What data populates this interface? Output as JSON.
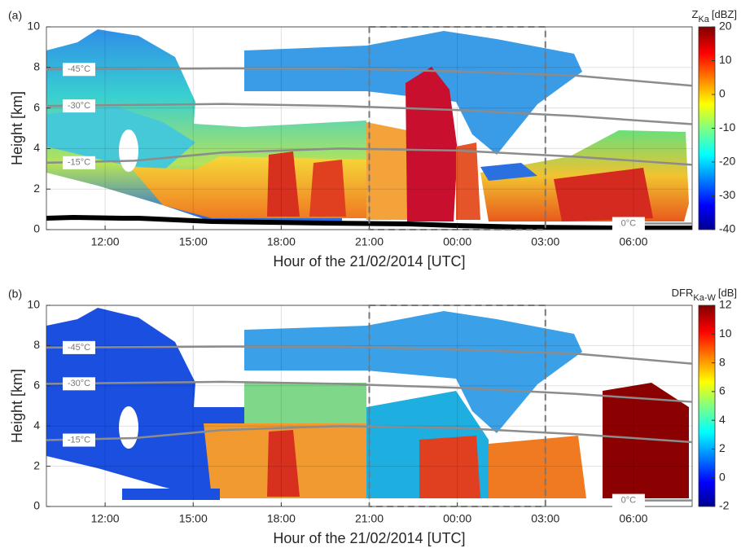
{
  "chart_data": [
    {
      "type": "heatmap",
      "panel_label": "(a)",
      "ylabel": "Height [km]",
      "xlabel": "Hour of the 21/02/2014 [UTC]",
      "xlim": [
        10,
        32
      ],
      "xticks": [
        {
          "value": 12,
          "label": "12:00"
        },
        {
          "value": 15,
          "label": "15:00"
        },
        {
          "value": 18,
          "label": "18:00"
        },
        {
          "value": 21,
          "label": "21:00"
        },
        {
          "value": 24,
          "label": "00:00"
        },
        {
          "value": 27,
          "label": "03:00"
        },
        {
          "value": 30,
          "label": "06:00"
        }
      ],
      "ylim": [
        0,
        10
      ],
      "yticks": [
        0,
        2,
        4,
        6,
        8,
        10
      ],
      "grid": true,
      "highlight_xrange": [
        21,
        27
      ],
      "colorbar": {
        "label_main": "Z",
        "label_sub": "Ka",
        "label_unit": "[dBZ]",
        "colormap": "jet",
        "zlim": [
          -40,
          20
        ],
        "ticks": [
          -40,
          -30,
          -20,
          -10,
          0,
          10,
          20
        ]
      },
      "series": [
        {
          "name": "-45°C",
          "color": "#8c8c8c",
          "x": [
            10,
            16,
            20,
            24,
            28,
            32
          ],
          "values": [
            7.9,
            7.95,
            7.95,
            7.8,
            7.6,
            7.1
          ]
        },
        {
          "name": "-30°C",
          "color": "#8c8c8c",
          "x": [
            10,
            16,
            20,
            24,
            28,
            32
          ],
          "values": [
            6.1,
            6.2,
            6.1,
            5.9,
            5.6,
            5.2
          ]
        },
        {
          "name": "-15°C",
          "color": "#8c8c8c",
          "x": [
            10,
            13,
            16,
            20,
            24,
            28,
            32
          ],
          "values": [
            3.3,
            3.4,
            3.8,
            4.0,
            3.9,
            3.6,
            3.2
          ]
        },
        {
          "name": "0°C",
          "color": "#8c8c8c",
          "x": [
            29.5,
            32
          ],
          "values": [
            0.3,
            0.3
          ]
        }
      ]
    },
    {
      "type": "heatmap",
      "panel_label": "(b)",
      "ylabel": "Height [km]",
      "xlabel": "Hour of the 21/02/2014 [UTC]",
      "xlim": [
        10,
        32
      ],
      "xticks": [
        {
          "value": 12,
          "label": "12:00"
        },
        {
          "value": 15,
          "label": "15:00"
        },
        {
          "value": 18,
          "label": "18:00"
        },
        {
          "value": 21,
          "label": "21:00"
        },
        {
          "value": 24,
          "label": "00:00"
        },
        {
          "value": 27,
          "label": "03:00"
        },
        {
          "value": 30,
          "label": "06:00"
        }
      ],
      "ylim": [
        0,
        10
      ],
      "yticks": [
        0,
        2,
        4,
        6,
        8,
        10
      ],
      "grid": true,
      "highlight_xrange": [
        21,
        27
      ],
      "colorbar": {
        "label_main": "DFR",
        "label_sub": "Ka-W",
        "label_unit": "[dB]",
        "colormap": "jet",
        "zlim": [
          -2,
          12
        ],
        "ticks": [
          -2,
          0,
          2,
          4,
          6,
          8,
          10,
          12
        ]
      },
      "series": [
        {
          "name": "-45°C",
          "color": "#8c8c8c",
          "x": [
            10,
            16,
            20,
            24,
            28,
            32
          ],
          "values": [
            7.9,
            7.95,
            7.95,
            7.8,
            7.6,
            7.1
          ]
        },
        {
          "name": "-30°C",
          "color": "#8c8c8c",
          "x": [
            10,
            16,
            20,
            24,
            28,
            32
          ],
          "values": [
            6.1,
            6.2,
            6.1,
            5.9,
            5.6,
            5.2
          ]
        },
        {
          "name": "-15°C",
          "color": "#8c8c8c",
          "x": [
            10,
            13,
            16,
            20,
            24,
            28,
            32
          ],
          "values": [
            3.3,
            3.4,
            3.8,
            4.0,
            3.9,
            3.6,
            3.2
          ]
        },
        {
          "name": "0°C",
          "color": "#8c8c8c",
          "x": [
            29.5,
            32
          ],
          "values": [
            0.3,
            0.3
          ]
        }
      ]
    }
  ]
}
